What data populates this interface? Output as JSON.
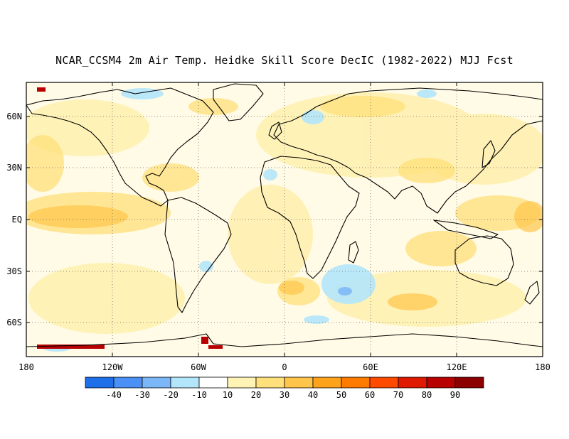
{
  "title": "NCAR_CCSM4 2m Air Temp. Heidke Skill Score DecIC (1982-2022) MJJ Fcst",
  "lat_labels": [
    "60N",
    "30N",
    "EQ",
    "30S",
    "60S"
  ],
  "lon_labels": [
    "180",
    "120W",
    "60W",
    "0",
    "60E",
    "120E",
    "180"
  ],
  "colorbar": {
    "colors": [
      "#1f6fe8",
      "#4b90f5",
      "#7bb6f7",
      "#b4e6fb",
      "#ffffff",
      "#fff4b5",
      "#ffe07a",
      "#ffc44a",
      "#ffa21c",
      "#ff7b00",
      "#ff4a00",
      "#e01a00",
      "#b80000",
      "#8c0000"
    ],
    "labels": [
      "-40",
      "-30",
      "-20",
      "-10",
      "10",
      "20",
      "30",
      "40",
      "50",
      "60",
      "70",
      "80",
      "90"
    ]
  },
  "colors": {
    "land_outline": "#000000",
    "grid": "#666666"
  }
}
